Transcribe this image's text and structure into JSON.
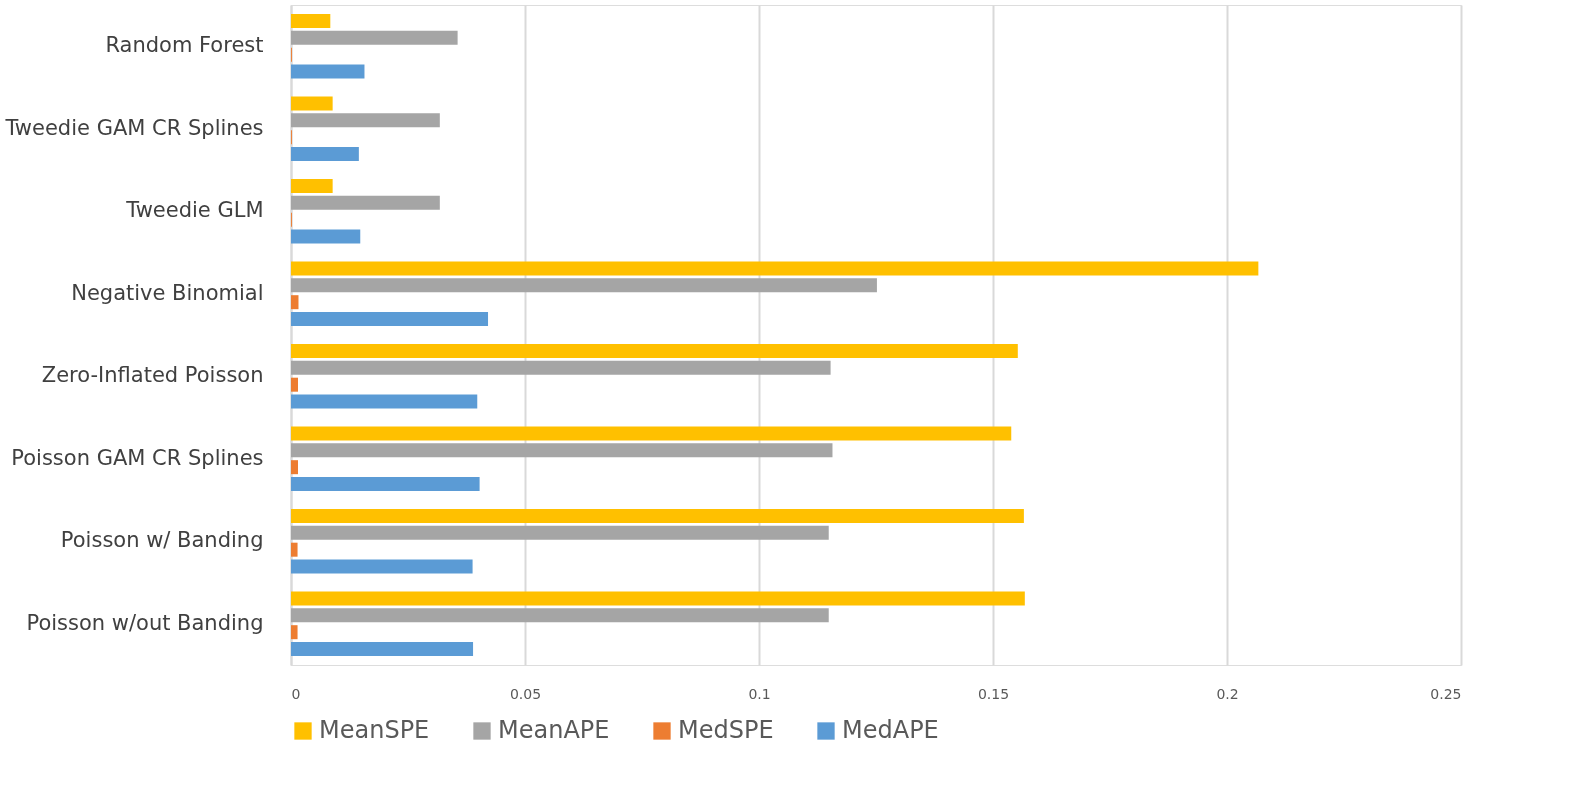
{
  "chart_data": {
    "type": "bar",
    "orientation": "horizontal",
    "categories": [
      "Random Forest",
      "Tweedie GAM CR Splines",
      "Tweedie GLM",
      "Negative Binomial",
      "Zero-Inflated Poisson",
      "Poisson GAM CR Splines",
      "Poisson w/ Banding",
      "Poisson w/out Banding"
    ],
    "series": [
      {
        "name": "MeanSPE",
        "color": "#ffc000",
        "values": [
          0.0084,
          0.0089,
          0.0089,
          0.2067,
          0.1553,
          0.1539,
          0.1566,
          0.1568
        ]
      },
      {
        "name": "MeanAPE",
        "color": "#a5a5a5",
        "values": [
          0.0356,
          0.0318,
          0.0318,
          0.1252,
          0.1153,
          0.1157,
          0.1149,
          0.1149
        ]
      },
      {
        "name": "MedSPE",
        "color": "#ed7d31",
        "values": [
          0.0002,
          0.0002,
          0.0002,
          0.0016,
          0.0015,
          0.0015,
          0.0014,
          0.0014
        ]
      },
      {
        "name": "MedAPE",
        "color": "#5b9bd5",
        "values": [
          0.0157,
          0.0145,
          0.0148,
          0.0421,
          0.0398,
          0.0403,
          0.0388,
          0.0389
        ]
      }
    ],
    "xlim": [
      0,
      0.25
    ],
    "xticks": [
      0,
      0.05,
      0.1,
      0.15,
      0.2,
      0.25
    ],
    "grid": "x",
    "legend": "bottom"
  }
}
